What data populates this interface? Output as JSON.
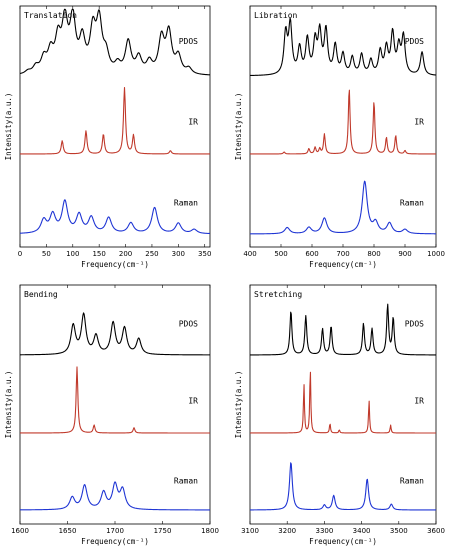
{
  "chart_data": [
    {
      "type": "line",
      "title": "Translation",
      "xlabel": "Frequency(cm⁻¹)",
      "ylabel": "Intensity(a.u.)",
      "xlim": [
        0,
        360
      ],
      "xticks": [
        "0",
        "50",
        "100",
        "150",
        "200",
        "250",
        "300",
        "350"
      ],
      "xtick_values": [
        0,
        50,
        100,
        150,
        200,
        250,
        300,
        350
      ],
      "grid": false,
      "series": [
        {
          "name": "PDOS",
          "color": "#000000",
          "baseline": 0.0,
          "width_scale": 1.0,
          "peaks": [
            [
              15,
              0.05
            ],
            [
              30,
              0.12
            ],
            [
              45,
              0.25
            ],
            [
              58,
              0.35
            ],
            [
              72,
              0.55
            ],
            [
              85,
              0.85
            ],
            [
              100,
              0.9
            ],
            [
              118,
              0.55
            ],
            [
              138,
              0.7
            ],
            [
              150,
              0.85
            ],
            [
              163,
              0.3
            ],
            [
              185,
              0.15
            ],
            [
              205,
              0.55
            ],
            [
              225,
              0.28
            ],
            [
              245,
              0.2
            ],
            [
              268,
              0.6
            ],
            [
              282,
              0.7
            ],
            [
              300,
              0.3
            ],
            [
              320,
              0.1
            ]
          ]
        },
        {
          "name": "IR",
          "color": "#c0392b",
          "baseline": 0.0,
          "width_scale": 0.35,
          "peaks": [
            [
              80,
              0.2
            ],
            [
              125,
              0.35
            ],
            [
              158,
              0.3
            ],
            [
              198,
              1.0
            ],
            [
              215,
              0.28
            ],
            [
              285,
              0.05
            ]
          ]
        },
        {
          "name": "Raman",
          "color": "#1f35d4",
          "baseline": 0.0,
          "width_scale": 1.0,
          "peaks": [
            [
              45,
              0.25
            ],
            [
              62,
              0.35
            ],
            [
              85,
              0.6
            ],
            [
              112,
              0.35
            ],
            [
              135,
              0.3
            ],
            [
              168,
              0.3
            ],
            [
              210,
              0.2
            ],
            [
              255,
              0.5
            ],
            [
              300,
              0.2
            ],
            [
              330,
              0.08
            ]
          ]
        }
      ]
    },
    {
      "type": "line",
      "title": "Libration",
      "xlabel": "Frequency(cm⁻¹)",
      "ylabel": "Intensity(a.u.)",
      "xlim": [
        400,
        1000
      ],
      "xticks": [
        "400",
        "500",
        "600",
        "700",
        "800",
        "900",
        "1000"
      ],
      "xtick_values": [
        400,
        500,
        600,
        700,
        800,
        900,
        1000
      ],
      "grid": false,
      "series": [
        {
          "name": "PDOS",
          "color": "#000000",
          "baseline": 0.0,
          "width_scale": 0.6,
          "peaks": [
            [
              515,
              0.7
            ],
            [
              530,
              0.85
            ],
            [
              560,
              0.45
            ],
            [
              585,
              0.6
            ],
            [
              610,
              0.55
            ],
            [
              625,
              0.7
            ],
            [
              645,
              0.75
            ],
            [
              675,
              0.5
            ],
            [
              700,
              0.35
            ],
            [
              730,
              0.3
            ],
            [
              760,
              0.35
            ],
            [
              790,
              0.25
            ],
            [
              820,
              0.4
            ],
            [
              840,
              0.45
            ],
            [
              860,
              0.7
            ],
            [
              880,
              0.45
            ],
            [
              895,
              0.65
            ],
            [
              955,
              0.4
            ]
          ]
        },
        {
          "name": "IR",
          "color": "#c0392b",
          "baseline": 0.0,
          "width_scale": 0.3,
          "peaks": [
            [
              510,
              0.03
            ],
            [
              590,
              0.08
            ],
            [
              610,
              0.1
            ],
            [
              625,
              0.08
            ],
            [
              640,
              0.3
            ],
            [
              720,
              1.0
            ],
            [
              800,
              0.8
            ],
            [
              840,
              0.25
            ],
            [
              870,
              0.28
            ],
            [
              900,
              0.05
            ]
          ]
        },
        {
          "name": "Raman",
          "color": "#1f35d4",
          "baseline": 0.0,
          "width_scale": 0.9,
          "peaks": [
            [
              520,
              0.12
            ],
            [
              590,
              0.12
            ],
            [
              640,
              0.3
            ],
            [
              770,
              1.0
            ],
            [
              805,
              0.2
            ],
            [
              850,
              0.2
            ],
            [
              900,
              0.08
            ]
          ]
        }
      ]
    },
    {
      "type": "line",
      "title": "Bending",
      "xlabel": "Frequency(cm⁻¹)",
      "ylabel": "Intensity(a.u.)",
      "xlim": [
        1600,
        1800
      ],
      "xticks": [
        "1600",
        "1650",
        "1700",
        "1750",
        "1800"
      ],
      "xtick_values": [
        1600,
        1650,
        1700,
        1750,
        1800
      ],
      "grid": false,
      "series": [
        {
          "name": "PDOS",
          "color": "#000000",
          "baseline": 0.0,
          "width_scale": 0.8,
          "peaks": [
            [
              1656,
              0.55
            ],
            [
              1667,
              0.75
            ],
            [
              1680,
              0.35
            ],
            [
              1698,
              0.6
            ],
            [
              1710,
              0.5
            ],
            [
              1725,
              0.3
            ]
          ]
        },
        {
          "name": "IR",
          "color": "#c0392b",
          "baseline": 0.0,
          "width_scale": 0.3,
          "peaks": [
            [
              1660,
              1.0
            ],
            [
              1678,
              0.12
            ],
            [
              1720,
              0.08
            ]
          ]
        },
        {
          "name": "Raman",
          "color": "#1f35d4",
          "baseline": 0.0,
          "width_scale": 0.9,
          "peaks": [
            [
              1655,
              0.25
            ],
            [
              1668,
              0.5
            ],
            [
              1688,
              0.35
            ],
            [
              1700,
              0.5
            ],
            [
              1708,
              0.4
            ]
          ]
        }
      ]
    },
    {
      "type": "line",
      "title": "Stretching",
      "xlabel": "Frequency(cm⁻¹)",
      "ylabel": "Intensity(a.u.)",
      "xlim": [
        3100,
        3600
      ],
      "xticks": [
        "3100",
        "3200",
        "3300",
        "3400",
        "3500",
        "3600"
      ],
      "xtick_values": [
        3100,
        3200,
        3300,
        3400,
        3500,
        3600
      ],
      "grid": false,
      "series": [
        {
          "name": "PDOS",
          "color": "#000000",
          "baseline": 0.0,
          "width_scale": 0.35,
          "peaks": [
            [
              3210,
              0.85
            ],
            [
              3250,
              0.75
            ],
            [
              3295,
              0.5
            ],
            [
              3318,
              0.55
            ],
            [
              3405,
              0.6
            ],
            [
              3428,
              0.5
            ],
            [
              3470,
              0.95
            ],
            [
              3485,
              0.7
            ]
          ]
        },
        {
          "name": "IR",
          "color": "#c0392b",
          "baseline": 0.0,
          "width_scale": 0.18,
          "peaks": [
            [
              3245,
              0.75
            ],
            [
              3262,
              1.0
            ],
            [
              3315,
              0.15
            ],
            [
              3340,
              0.05
            ],
            [
              3420,
              0.5
            ],
            [
              3478,
              0.12
            ]
          ]
        },
        {
          "name": "Raman",
          "color": "#1f35d4",
          "baseline": 0.0,
          "width_scale": 0.5,
          "peaks": [
            [
              3210,
              1.0
            ],
            [
              3300,
              0.1
            ],
            [
              3325,
              0.3
            ],
            [
              3415,
              0.65
            ],
            [
              3480,
              0.12
            ]
          ]
        }
      ]
    }
  ]
}
